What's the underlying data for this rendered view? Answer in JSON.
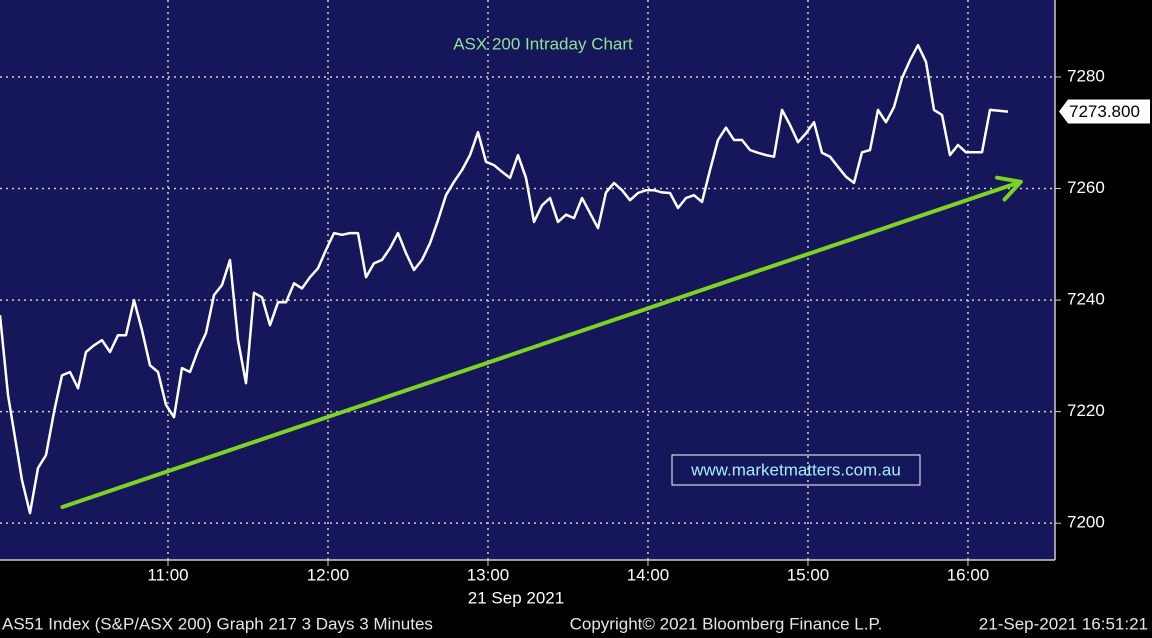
{
  "chart_data": {
    "type": "line",
    "title": "ASX 200 Intraday Chart",
    "x_axis_label": "21 Sep 2021",
    "watermark": "www.marketmatters.com.au",
    "footer": {
      "left": "AS51 Index (S&P/ASX 200) Graph 217 3 Days 3 Minutes",
      "center": "Copyright© 2021 Bloomberg Finance L.P.",
      "right": "21-Sep-2021 16:51:21"
    },
    "color": "#ffffff",
    "x": [
      9.95,
      10.0,
      10.0875,
      10.1375,
      10.1875,
      10.2375,
      10.29,
      10.3375,
      10.3875,
      10.4375,
      10.4875,
      10.5375,
      10.5875,
      10.6375,
      10.6875,
      10.7375,
      10.7875,
      10.8375,
      10.8875,
      10.9375,
      10.9875,
      11.0375,
      11.0875,
      11.1375,
      11.1875,
      11.2375,
      11.2875,
      11.3375,
      11.3875,
      11.4375,
      11.4875,
      11.5375,
      11.5875,
      11.6375,
      11.6875,
      11.7375,
      11.7875,
      11.8375,
      11.8875,
      11.9375,
      11.9875,
      12.0375,
      12.0875,
      12.1375,
      12.1875,
      12.2375,
      12.2875,
      12.3375,
      12.3875,
      12.4375,
      12.4875,
      12.5375,
      12.5875,
      12.6375,
      12.6875,
      12.7375,
      12.7875,
      12.8375,
      12.8875,
      12.9375,
      12.9875,
      13.0375,
      13.0875,
      13.1375,
      13.1875,
      13.2375,
      13.2875,
      13.3375,
      13.3875,
      13.4375,
      13.4875,
      13.5375,
      13.5875,
      13.6375,
      13.6875,
      13.7375,
      13.7875,
      13.8375,
      13.8875,
      13.9375,
      13.9875,
      14.0375,
      14.0875,
      14.1375,
      14.1875,
      14.2375,
      14.2875,
      14.3375,
      14.3875,
      14.4375,
      14.4875,
      14.5375,
      14.5875,
      14.6375,
      14.6875,
      14.7375,
      14.7875,
      14.8375,
      14.8875,
      14.9375,
      14.9875,
      15.0375,
      15.0875,
      15.1375,
      15.1875,
      15.2375,
      15.2875,
      15.3375,
      15.3875,
      15.4375,
      15.4875,
      15.5375,
      15.5875,
      15.6375,
      15.6875,
      15.7375,
      15.7875,
      15.8375,
      15.8875,
      15.9375,
      15.9875,
      16.0375,
      16.0875,
      16.1375,
      16.25
    ],
    "values": [
      7237.3,
      7223.0,
      7207.7,
      7201.8,
      7209.9,
      7212.2,
      7220.3,
      7226.5,
      7227.1,
      7224.2,
      7230.7,
      7231.9,
      7232.8,
      7230.7,
      7233.7,
      7233.7,
      7240.0,
      7234.6,
      7228.3,
      7227.1,
      7221.2,
      7219.0,
      7227.8,
      7227.1,
      7231.0,
      7234.1,
      7240.9,
      7242.7,
      7247.2,
      7232.8,
      7225.1,
      7241.3,
      7240.5,
      7235.5,
      7239.6,
      7239.6,
      7243.0,
      7242.1,
      7244.1,
      7245.7,
      7249.0,
      7252.0,
      7251.7,
      7252.0,
      7252.0,
      7244.1,
      7246.6,
      7247.2,
      7249.3,
      7252.0,
      7248.4,
      7245.4,
      7247.2,
      7250.2,
      7254.3,
      7258.8,
      7261.2,
      7263.3,
      7266.0,
      7270.1,
      7264.8,
      7264.2,
      7263.0,
      7261.9,
      7266.0,
      7261.9,
      7254.0,
      7257.0,
      7258.3,
      7254.0,
      7255.3,
      7254.7,
      7258.3,
      7255.6,
      7252.9,
      7259.3,
      7261.0,
      7259.7,
      7257.9,
      7259.2,
      7259.7,
      7259.7,
      7259.3,
      7259.2,
      7256.5,
      7258.3,
      7258.8,
      7257.6,
      7263.3,
      7268.7,
      7270.9,
      7268.7,
      7268.7,
      7266.9,
      7266.4,
      7266.0,
      7265.7,
      7274.1,
      7271.4,
      7268.3,
      7269.9,
      7271.9,
      7266.4,
      7265.7,
      7263.9,
      7262.1,
      7261.0,
      7266.5,
      7266.9,
      7274.1,
      7271.9,
      7274.6,
      7279.8,
      7283.0,
      7285.7,
      7282.7,
      7274.1,
      7273.2,
      7266.0,
      7267.8,
      7266.5,
      7266.5,
      7266.5,
      7274.1,
      7273.8
    ],
    "current_price": {
      "value": 7273.8,
      "label": "7273.800"
    },
    "trend_arrow": {
      "color": "#7ed321",
      "x": [
        10.34,
        16.33
      ],
      "values": [
        7202.9,
        7261.2
      ]
    },
    "xlim": [
      9.95,
      16.544
    ],
    "xticks": [
      {
        "value": 11,
        "label": "11:00"
      },
      {
        "value": 12,
        "label": "12:00"
      },
      {
        "value": 13,
        "label": "13:00"
      },
      {
        "value": 14,
        "label": "14:00"
      },
      {
        "value": 15,
        "label": "15:00"
      },
      {
        "value": 16,
        "label": "16:00"
      }
    ],
    "ylim": [
      7193.4,
      7293.8
    ],
    "yticks": [
      7200,
      7220,
      7240,
      7260,
      7280
    ],
    "grid": true
  }
}
